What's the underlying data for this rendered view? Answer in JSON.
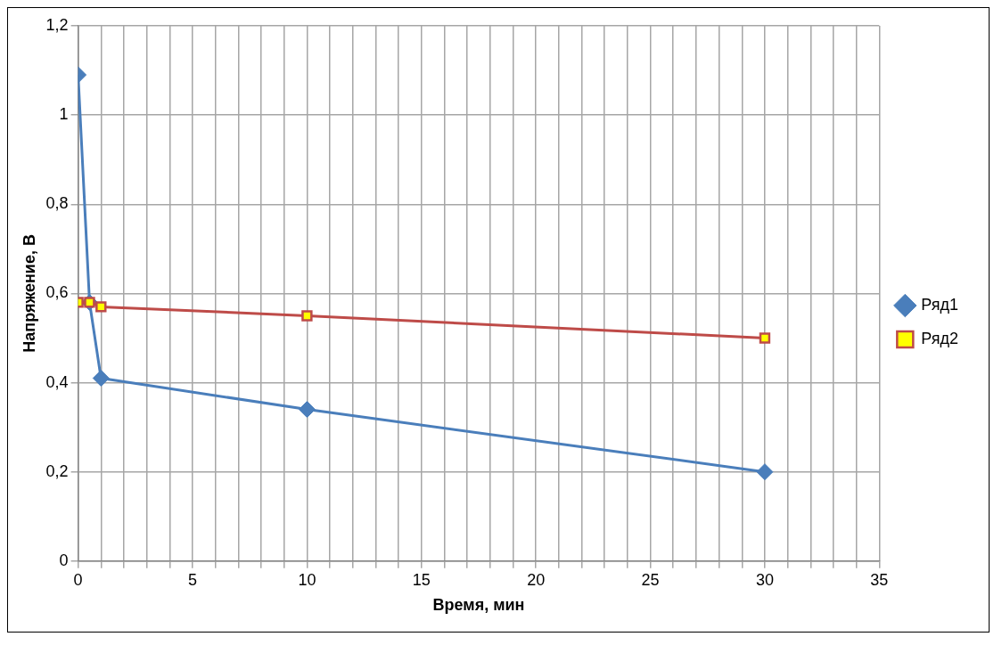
{
  "chart_data": {
    "type": "line",
    "xlabel": "Время, мин",
    "ylabel": "Напряжение, В",
    "xlim": [
      0,
      35
    ],
    "xticks": [
      0,
      {
        "value": 1,
        "label": null
      },
      {
        "value": 2,
        "label": null
      },
      {
        "value": 3,
        "label": null
      },
      {
        "value": 4,
        "label": null
      },
      5,
      {
        "value": 6,
        "label": null
      },
      {
        "value": 7,
        "label": null
      },
      {
        "value": 8,
        "label": null
      },
      {
        "value": 9,
        "label": null
      },
      10,
      {
        "value": 11,
        "label": null
      },
      {
        "value": 12,
        "label": null
      },
      {
        "value": 13,
        "label": null
      },
      {
        "value": 14,
        "label": null
      },
      15,
      {
        "value": 16,
        "label": null
      },
      {
        "value": 17,
        "label": null
      },
      {
        "value": 18,
        "label": null
      },
      {
        "value": 19,
        "label": null
      },
      20,
      {
        "value": 21,
        "label": null
      },
      {
        "value": 22,
        "label": null
      },
      {
        "value": 23,
        "label": null
      },
      {
        "value": 24,
        "label": null
      },
      25,
      {
        "value": 26,
        "label": null
      },
      {
        "value": 27,
        "label": null
      },
      {
        "value": 28,
        "label": null
      },
      {
        "value": 29,
        "label": null
      },
      30,
      {
        "value": 31,
        "label": null
      },
      {
        "value": 32,
        "label": null
      },
      {
        "value": 33,
        "label": null
      },
      {
        "value": 34,
        "label": null
      },
      35
    ],
    "ylim": [
      0,
      1.2
    ],
    "yticks": [
      0,
      {
        "value": 0.2,
        "label": "0,2"
      },
      {
        "value": 0.4,
        "label": "0,4"
      },
      {
        "value": 0.6,
        "label": "0,6"
      },
      {
        "value": 0.8,
        "label": "0,8"
      },
      1,
      {
        "value": 1.2,
        "label": "1,2"
      }
    ],
    "grid": true,
    "legend": "right",
    "line_style": "solid",
    "series": [
      {
        "name": "Ряд1",
        "color": "#4a7ebb",
        "marker": "diamond",
        "x": [
          0,
          0.5,
          1,
          10,
          30
        ],
        "values": [
          1.09,
          0.58,
          0.41,
          0.34,
          0.2
        ]
      },
      {
        "name": "Ряд2",
        "color": "#be4b48",
        "marker": "square",
        "x": [
          0,
          0.5,
          1,
          10,
          30
        ],
        "values": [
          0.58,
          0.58,
          0.57,
          0.55,
          0.5
        ]
      }
    ]
  }
}
